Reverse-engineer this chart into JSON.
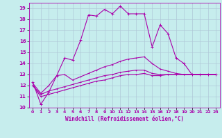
{
  "xlabel": "Windchill (Refroidissement éolien,°C)",
  "xlim": [
    -0.5,
    23.5
  ],
  "ylim": [
    10,
    19.5
  ],
  "xticks": [
    0,
    1,
    2,
    3,
    4,
    5,
    6,
    7,
    8,
    9,
    10,
    11,
    12,
    13,
    14,
    15,
    16,
    17,
    18,
    19,
    20,
    21,
    22,
    23
  ],
  "yticks": [
    10,
    11,
    12,
    13,
    14,
    15,
    16,
    17,
    18,
    19
  ],
  "background_color": "#c6eded",
  "grid_color": "#b0c8d8",
  "line_color": "#aa00aa",
  "hours": [
    0,
    1,
    2,
    3,
    4,
    5,
    6,
    7,
    8,
    9,
    10,
    11,
    12,
    13,
    14,
    15,
    16,
    17,
    18,
    19,
    20,
    21,
    22,
    23
  ],
  "line1": [
    12.3,
    10.3,
    11.4,
    12.9,
    14.5,
    14.3,
    16.1,
    18.4,
    18.3,
    18.9,
    18.5,
    19.2,
    18.5,
    18.5,
    18.5,
    15.5,
    17.5,
    16.7,
    14.5,
    14.0,
    13.0,
    13.0,
    13.0,
    13.0
  ],
  "line2": [
    12.2,
    11.3,
    12.0,
    12.9,
    13.0,
    12.5,
    12.8,
    13.1,
    13.4,
    13.7,
    13.9,
    14.2,
    14.4,
    14.5,
    14.6,
    14.0,
    13.5,
    13.3,
    13.1,
    13.0,
    13.0,
    13.0,
    13.0,
    13.0
  ],
  "line3": [
    12.0,
    11.2,
    11.5,
    11.7,
    11.9,
    12.1,
    12.3,
    12.5,
    12.7,
    12.9,
    13.0,
    13.2,
    13.3,
    13.4,
    13.4,
    13.1,
    13.0,
    13.0,
    13.0,
    13.0,
    13.0,
    13.0,
    13.0,
    13.0
  ],
  "line4": [
    12.0,
    11.0,
    11.2,
    11.4,
    11.6,
    11.8,
    12.0,
    12.2,
    12.4,
    12.5,
    12.7,
    12.9,
    13.0,
    13.0,
    13.1,
    12.9,
    12.9,
    13.0,
    13.0,
    13.0,
    13.0,
    13.0,
    13.0,
    13.0
  ]
}
